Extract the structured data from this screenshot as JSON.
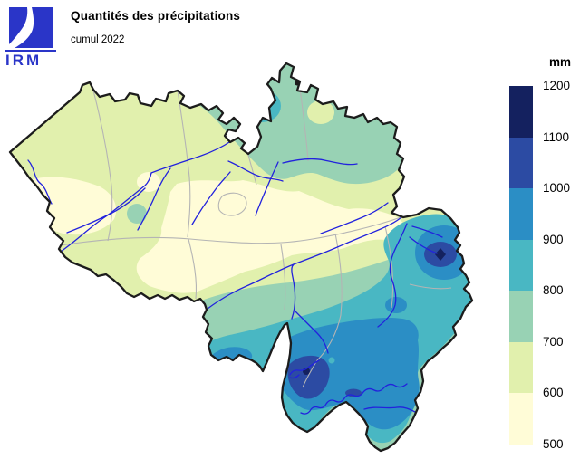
{
  "header": {
    "title": "Quantités des précipitations",
    "subtitle": "cumul 2022",
    "logo_text": "IRM"
  },
  "legend": {
    "unit": "mm",
    "stops": [
      "1200",
      "1100",
      "1000",
      "900",
      "800",
      "700",
      "600",
      "500"
    ],
    "band_colors_top_to_bottom": [
      "#14215f",
      "#2c4ba3",
      "#2b8ec5",
      "#49b7c3",
      "#98d2b4",
      "#e1f0ad",
      "#fffcd7"
    ]
  },
  "map": {
    "region": "Belgique",
    "palette": {
      "c500": "#fffcd7",
      "c600": "#e1f0ad",
      "c700": "#98d2b4",
      "c800": "#49b7c3",
      "c900": "#2b8ec5",
      "c1000": "#2c4ba3",
      "c1100": "#14215f"
    },
    "river_color": "#2222dd",
    "border_color": "#1c1c1c",
    "province_border_color": "#b4b4b4",
    "logo_color": "#2a35c8"
  }
}
